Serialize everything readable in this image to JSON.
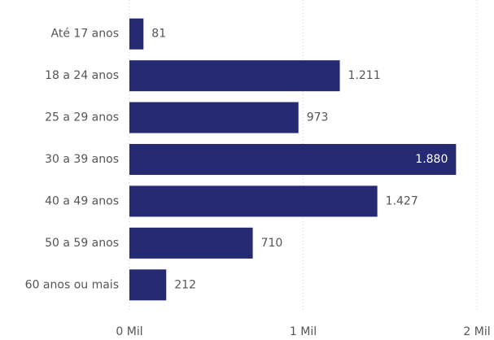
{
  "chart_data": {
    "type": "hbar",
    "categories": [
      "Até 17 anos",
      "18 a 24 anos",
      "25 a 29 anos",
      "30 a 39 anos",
      "40 a 49 anos",
      "50 a 59 anos",
      "60 anos ou mais"
    ],
    "values": [
      81,
      1211,
      973,
      1880,
      1427,
      710,
      212
    ],
    "value_labels": [
      "81",
      "1.211",
      "973",
      "1.880",
      "1.427",
      "710",
      "212"
    ],
    "color": "#262a72",
    "xlim": [
      0,
      2000
    ],
    "xticks": [
      {
        "value": 0,
        "label": "0 Mil"
      },
      {
        "value": 1000,
        "label": "1 Mil"
      },
      {
        "value": 2000,
        "label": "2 Mil"
      }
    ],
    "grid": true
  }
}
